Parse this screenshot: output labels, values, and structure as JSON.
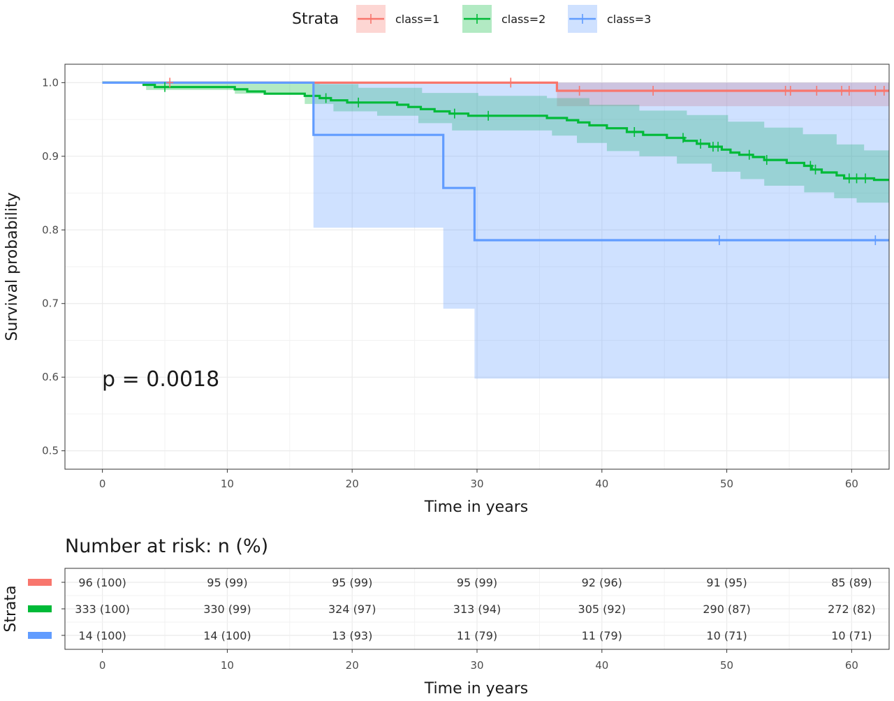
{
  "chart_data": {
    "type": "line",
    "subtype": "kaplan-meier",
    "xlabel": "Time in years",
    "ylabel": "Survival probability",
    "xlim": [
      -3,
      63
    ],
    "ylim": [
      0.475,
      1.025
    ],
    "x_ticks": [
      0,
      10,
      20,
      30,
      40,
      50,
      60
    ],
    "y_ticks": [
      0.5,
      0.6,
      0.7,
      0.8,
      0.9,
      1.0
    ],
    "y_tick_labels": [
      "0.5",
      "0.6",
      "0.7",
      "0.8",
      "0.9",
      "1.0"
    ],
    "grid": true,
    "legend": {
      "title": "Strata",
      "placement": "top",
      "entries": [
        "class=1",
        "class=2",
        "class=3"
      ]
    },
    "annotation": "p = 0.0018",
    "series": [
      {
        "name": "class=1",
        "color": "#F8766D",
        "steps": [
          [
            0,
            1.0
          ],
          [
            36.4,
            0.989
          ],
          [
            63,
            0.989
          ]
        ],
        "ci_upper": [
          [
            0,
            1.0
          ],
          [
            63,
            1.0
          ]
        ],
        "ci_lower": [
          [
            0,
            1.0
          ],
          [
            36.4,
            0.968
          ],
          [
            63,
            0.968
          ]
        ],
        "censor_x": [
          5.4,
          32.7,
          38.2,
          44.1,
          54.7,
          55.1,
          57.2,
          59.2,
          59.8,
          61.9,
          62.6
        ]
      },
      {
        "name": "class=2",
        "color": "#00BA38",
        "steps": [
          [
            0,
            1.0
          ],
          [
            3.3,
            0.997
          ],
          [
            4.2,
            0.994
          ],
          [
            10.6,
            0.991
          ],
          [
            11.6,
            0.988
          ],
          [
            13.0,
            0.985
          ],
          [
            16.2,
            0.982
          ],
          [
            17.4,
            0.979
          ],
          [
            18.3,
            0.976
          ],
          [
            19.6,
            0.973
          ],
          [
            23.6,
            0.97
          ],
          [
            24.5,
            0.967
          ],
          [
            25.5,
            0.964
          ],
          [
            26.6,
            0.961
          ],
          [
            27.8,
            0.958
          ],
          [
            29.3,
            0.955
          ],
          [
            35.6,
            0.952
          ],
          [
            37.2,
            0.949
          ],
          [
            38.1,
            0.946
          ],
          [
            39.0,
            0.942
          ],
          [
            40.4,
            0.938
          ],
          [
            42.0,
            0.933
          ],
          [
            43.3,
            0.929
          ],
          [
            45.2,
            0.925
          ],
          [
            46.6,
            0.921
          ],
          [
            47.6,
            0.917
          ],
          [
            48.6,
            0.913
          ],
          [
            49.6,
            0.909
          ],
          [
            50.3,
            0.905
          ],
          [
            51.0,
            0.902
          ],
          [
            52.1,
            0.899
          ],
          [
            53.0,
            0.895
          ],
          [
            54.8,
            0.891
          ],
          [
            56.2,
            0.887
          ],
          [
            56.8,
            0.882
          ],
          [
            57.6,
            0.878
          ],
          [
            58.8,
            0.874
          ],
          [
            59.4,
            0.87
          ],
          [
            61.8,
            0.868
          ],
          [
            63,
            0.868
          ]
        ],
        "ci_upper": [
          [
            0,
            1.0
          ],
          [
            17.4,
            0.998
          ],
          [
            20.5,
            0.993
          ],
          [
            25.6,
            0.986
          ],
          [
            30.1,
            0.982
          ],
          [
            35.6,
            0.979
          ],
          [
            39.0,
            0.97
          ],
          [
            43.0,
            0.962
          ],
          [
            46.8,
            0.956
          ],
          [
            50.1,
            0.947
          ],
          [
            53.0,
            0.939
          ],
          [
            56.1,
            0.93
          ],
          [
            58.8,
            0.916
          ],
          [
            61.0,
            0.908
          ],
          [
            63,
            0.905
          ]
        ],
        "ci_lower": [
          [
            0,
            1.0
          ],
          [
            3.5,
            0.99
          ],
          [
            10.6,
            0.985
          ],
          [
            16.2,
            0.971
          ],
          [
            18.5,
            0.961
          ],
          [
            22.0,
            0.955
          ],
          [
            25.3,
            0.945
          ],
          [
            28.0,
            0.935
          ],
          [
            36.0,
            0.928
          ],
          [
            38.0,
            0.918
          ],
          [
            40.4,
            0.907
          ],
          [
            43.0,
            0.9
          ],
          [
            46.0,
            0.89
          ],
          [
            48.8,
            0.879
          ],
          [
            51.1,
            0.869
          ],
          [
            53.0,
            0.86
          ],
          [
            56.2,
            0.851
          ],
          [
            58.6,
            0.843
          ],
          [
            60.4,
            0.837
          ],
          [
            63,
            0.832
          ]
        ],
        "censor_x": [
          5.0,
          17.9,
          20.5,
          28.2,
          30.9,
          42.6,
          46.5,
          47.9,
          48.9,
          49.3,
          51.8,
          53.2,
          56.7,
          57.1,
          59.8,
          60.4,
          61.1
        ]
      },
      {
        "name": "class=3",
        "color": "#619CFF",
        "steps": [
          [
            0,
            1.0
          ],
          [
            16.9,
            0.929
          ],
          [
            27.3,
            0.857
          ],
          [
            29.8,
            0.786
          ],
          [
            63,
            0.786
          ]
        ],
        "ci_upper": [
          [
            0,
            1.0
          ],
          [
            63,
            1.0
          ]
        ],
        "ci_lower": [
          [
            0,
            1.0
          ],
          [
            16.9,
            0.803
          ],
          [
            27.3,
            0.693
          ],
          [
            29.8,
            0.598
          ],
          [
            63,
            0.598
          ]
        ],
        "censor_x": [
          49.4,
          61.9
        ]
      }
    ]
  },
  "risk_table": {
    "title": "Number at risk: n (%)",
    "ylabel": "Strata",
    "xlabel": "Time in years",
    "times": [
      0,
      10,
      20,
      30,
      40,
      50,
      60
    ],
    "rows": [
      {
        "name": "class=1",
        "color": "#F8766D",
        "values": [
          "96 (100)",
          "95 (99)",
          "95 (99)",
          "95 (99)",
          "92 (96)",
          "91 (95)",
          "85 (89)"
        ]
      },
      {
        "name": "class=2",
        "color": "#00BA38",
        "values": [
          "333 (100)",
          "330 (99)",
          "324 (97)",
          "313 (94)",
          "305 (92)",
          "290 (87)",
          "272 (82)"
        ]
      },
      {
        "name": "class=3",
        "color": "#619CFF",
        "values": [
          "14 (100)",
          "14 (100)",
          "13 (93)",
          "11 (79)",
          "11 (79)",
          "10 (71)",
          "10 (71)"
        ]
      }
    ]
  }
}
